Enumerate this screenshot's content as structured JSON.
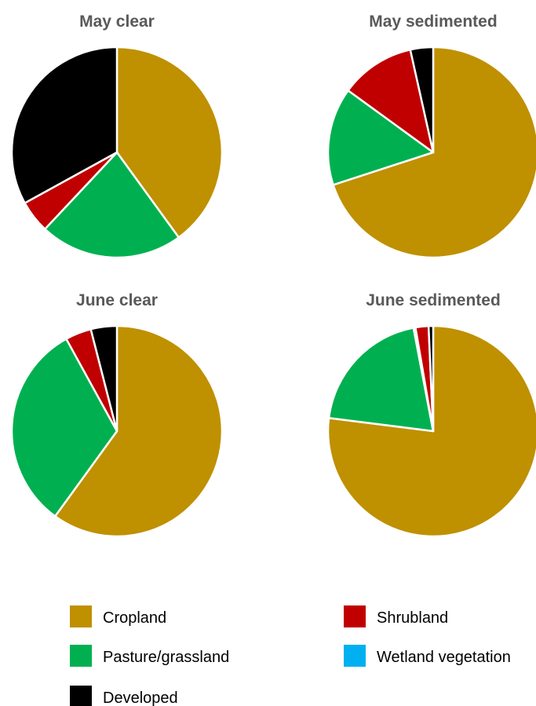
{
  "chart_data": {
    "type": "pie",
    "categories": [
      "Cropland",
      "Pasture/grassland",
      "Developed",
      "Shrubland",
      "Wetland vegetation"
    ],
    "colors": {
      "Cropland": "#BF9000",
      "Pasture/grassland": "#00B050",
      "Developed": "#000000",
      "Shrubland": "#C00000",
      "Wetland vegetation": "#00B0F0"
    },
    "charts": [
      {
        "title": "May clear",
        "values": {
          "Cropland": 40,
          "Pasture/grassland": 22,
          "Shrubland": 5,
          "Developed": 33,
          "Wetland vegetation": 0
        }
      },
      {
        "title": "May sedimented",
        "values": {
          "Cropland": 70,
          "Pasture/grassland": 15,
          "Shrubland": 11.5,
          "Developed": 3.5,
          "Wetland vegetation": 0
        }
      },
      {
        "title": "June clear",
        "values": {
          "Cropland": 60,
          "Pasture/grassland": 32,
          "Shrubland": 4,
          "Developed": 4,
          "Wetland vegetation": 0
        }
      },
      {
        "title": "June sedimented",
        "values": {
          "Cropland": 77,
          "Pasture/grassland": 20,
          "Shrubland": 2,
          "Developed": 0.7,
          "Wetland vegetation": 0.3
        }
      }
    ],
    "legend": [
      {
        "label": "Cropland",
        "color": "#BF9000"
      },
      {
        "label": "Shrubland",
        "color": "#C00000"
      },
      {
        "label": "Pasture/grassland",
        "color": "#00B050"
      },
      {
        "label": "Wetland vegetation",
        "color": "#00B0F0"
      },
      {
        "label": "Developed",
        "color": "#000000"
      }
    ],
    "legend_placement": "bottom"
  }
}
